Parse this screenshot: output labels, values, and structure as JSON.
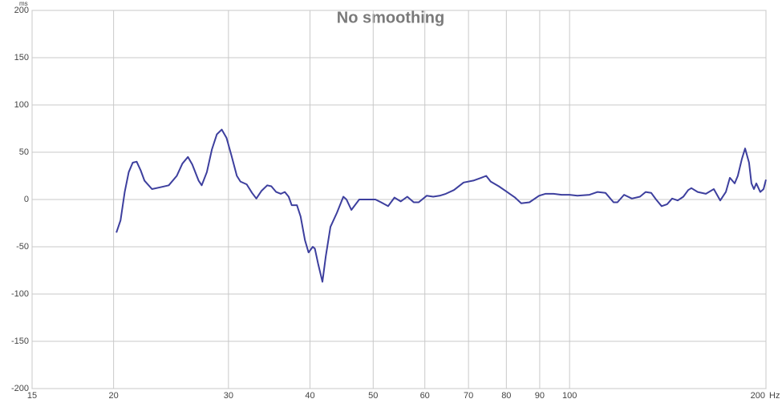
{
  "chart_data": {
    "type": "line",
    "title": "No smoothing",
    "x_unit": "Hz",
    "y_unit": "ms",
    "xlog": true,
    "grid": true,
    "xlim": [
      15,
      200
    ],
    "ylim": [
      -200,
      200
    ],
    "xticks": [
      15,
      20,
      30,
      40,
      50,
      60,
      70,
      80,
      90,
      100,
      200
    ],
    "yticks": [
      200,
      150,
      100,
      50,
      0,
      -50,
      -100,
      -150,
      -200
    ],
    "x": [
      20.2,
      20.5,
      20.8,
      21.1,
      21.4,
      21.7,
      22.0,
      22.3,
      22.9,
      23.6,
      24.3,
      25.0,
      25.5,
      26.0,
      26.4,
      27.0,
      27.3,
      27.8,
      28.3,
      28.8,
      29.3,
      29.8,
      30.3,
      30.9,
      31.3,
      32.0,
      32.6,
      33.1,
      33.7,
      34.4,
      34.9,
      35.5,
      36.1,
      36.6,
      37.1,
      37.5,
      38.2,
      38.7,
      39.3,
      39.8,
      40.4,
      40.7,
      41.2,
      41.8,
      42.3,
      43.0,
      44.0,
      45.0,
      45.5,
      46.3,
      47.6,
      49.0,
      50.4,
      51.4,
      52.7,
      53.9,
      55.1,
      56.4,
      57.7,
      58.7,
      60.4,
      61.8,
      63.2,
      64.6,
      66.5,
      68.8,
      71.2,
      73.2,
      74.5,
      75.7,
      77.9,
      80.2,
      82.5,
      84.3,
      86.8,
      89.8,
      91.8,
      94.5,
      97.2,
      100,
      102.8,
      107.3,
      110.4,
      113.5,
      116.8,
      118.4,
      121.2,
      124.6,
      128.2,
      130.8,
      133.4,
      135.7,
      138.4,
      141.1,
      143.6,
      146.5,
      149.4,
      152.0,
      153.7,
      157.2,
      161.8,
      166.4,
      170.2,
      173.6,
      176.1,
      179.1,
      181.1,
      183.7,
      185.8,
      188.4,
      190.0,
      191.7,
      193.3,
      196.0,
      198.3,
      200
    ],
    "series": [
      {
        "color": "#3d3f9e",
        "values": [
          -35,
          -22,
          8,
          29,
          39,
          40,
          31,
          20,
          11,
          13,
          15,
          25,
          38,
          45,
          37,
          20,
          15,
          29,
          53,
          69,
          74,
          65,
          47,
          25,
          19,
          16,
          7,
          1,
          9,
          15,
          14,
          8,
          6,
          8,
          3,
          -6,
          -6,
          -18,
          -43,
          -56,
          -50,
          -52,
          -69,
          -87,
          -60,
          -29,
          -14,
          3,
          0,
          -11,
          0,
          0,
          0,
          -3,
          -7,
          2,
          -2,
          3,
          -3,
          -3,
          4,
          3,
          4,
          6,
          10,
          18,
          20,
          23,
          25,
          19,
          14,
          8,
          2,
          -4,
          -3,
          4,
          6,
          6,
          5,
          5,
          4,
          5,
          8,
          7,
          -3,
          -3,
          5,
          1,
          3,
          8,
          7,
          0,
          -7,
          -5,
          1,
          -1,
          3,
          10,
          12,
          8,
          6,
          11,
          -1,
          8,
          23,
          17,
          25,
          43,
          54,
          39,
          17,
          11,
          17,
          8,
          11,
          21
        ]
      }
    ]
  }
}
